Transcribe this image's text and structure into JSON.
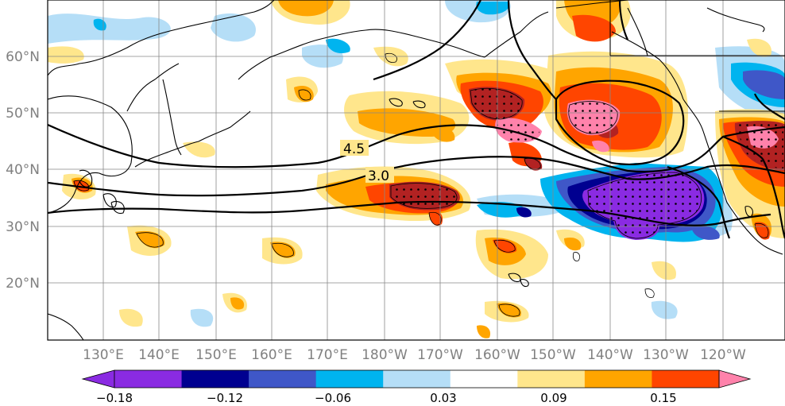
{
  "map": {
    "lat_labels": [
      "60°N",
      "50°N",
      "40°N",
      "30°N",
      "20°N"
    ],
    "lon_labels": [
      "130°E",
      "140°E",
      "150°E",
      "160°E",
      "170°E",
      "180°W",
      "170°W",
      "160°W",
      "150°W",
      "140°W",
      "130°W",
      "120°W"
    ],
    "contour_labels": [
      "4.5",
      "3.0"
    ]
  },
  "colorbar": {
    "ticks": [
      "−0.18",
      "−0.12",
      "−0.06",
      "0.03",
      "0.09",
      "0.15"
    ],
    "colors": [
      "#8a2be2",
      "#000090",
      "#3f57c8",
      "#00b4ef",
      "#b5def7",
      "#ffffff",
      "#ffe68c",
      "#ffa500",
      "#ff4500",
      "#b22222",
      "#ff82ab"
    ]
  }
}
